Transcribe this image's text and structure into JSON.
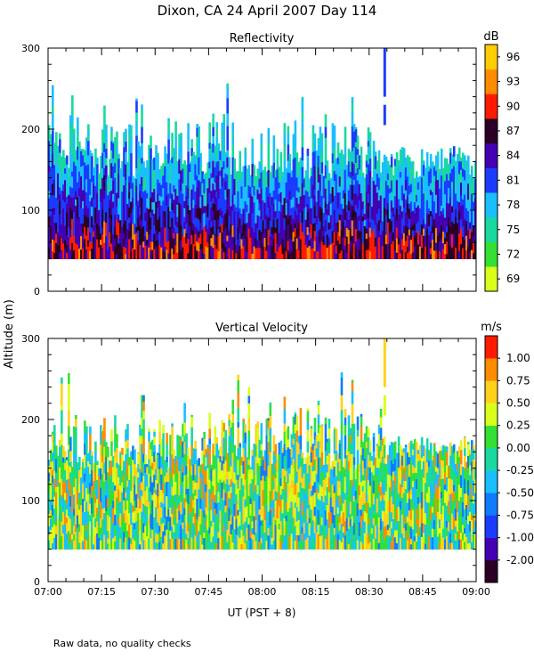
{
  "title": "Dixon, CA 24 April 2007  Day 114",
  "footnote": "Raw data, no quality checks",
  "y_axis_label": "Altitude (m)",
  "x_axis_label": "UT  (PST + 8)",
  "x_ticks": [
    "07:00",
    "07:15",
    "07:30",
    "07:45",
    "08:00",
    "08:15",
    "08:30",
    "08:45",
    "09:00"
  ],
  "colors": {
    "reflectivity": [
      "#d9ff1a",
      "#33e033",
      "#19d9a0",
      "#19bfff",
      "#1a3cff",
      "#4400b3",
      "#2b0025",
      "#ff1a00",
      "#ff8c00",
      "#ffcc00"
    ],
    "velocity": [
      "#2b0025",
      "#4400b3",
      "#1a3cff",
      "#0f7cff",
      "#19bfff",
      "#19d9a0",
      "#33e033",
      "#d9ff1a",
      "#ffd21a",
      "#ff8c00",
      "#ff1a00"
    ]
  },
  "chart_data": [
    {
      "type": "heatmap",
      "title": "Reflectivity",
      "xlabel": "UT  (PST + 8)",
      "ylabel": "Altitude (m)",
      "x_range_minutes": [
        0,
        120
      ],
      "x_tick_labels": [
        "07:00",
        "07:15",
        "07:30",
        "07:45",
        "08:00",
        "08:15",
        "08:30",
        "08:45",
        "09:00"
      ],
      "ylim": [
        0,
        300
      ],
      "y_ticks": [
        0,
        100,
        200,
        300
      ],
      "colorbar_unit": "dB",
      "colorbar_labels": [
        "69",
        "72",
        "75",
        "78",
        "81",
        "84",
        "87",
        "90",
        "93",
        "96"
      ],
      "data_altitude_floor": 40,
      "main_layer_top_approx": 160,
      "max_echo_top": 300
    },
    {
      "type": "heatmap",
      "title": "Vertical Velocity",
      "xlabel": "UT  (PST + 8)",
      "ylabel": "Altitude (m)",
      "x_range_minutes": [
        0,
        120
      ],
      "x_tick_labels": [
        "07:00",
        "07:15",
        "07:30",
        "07:45",
        "08:00",
        "08:15",
        "08:30",
        "08:45",
        "09:00"
      ],
      "ylim": [
        0,
        300
      ],
      "y_ticks": [
        0,
        100,
        200,
        300
      ],
      "colorbar_unit": "m/s",
      "colorbar_labels": [
        "-2.00",
        "-1.00",
        "-0.75",
        "-0.50",
        "-0.25",
        "0.00",
        "0.25",
        "0.50",
        "0.75",
        "1.00"
      ],
      "data_altitude_floor": 40,
      "main_layer_top_approx": 160,
      "max_echo_top": 300
    }
  ]
}
